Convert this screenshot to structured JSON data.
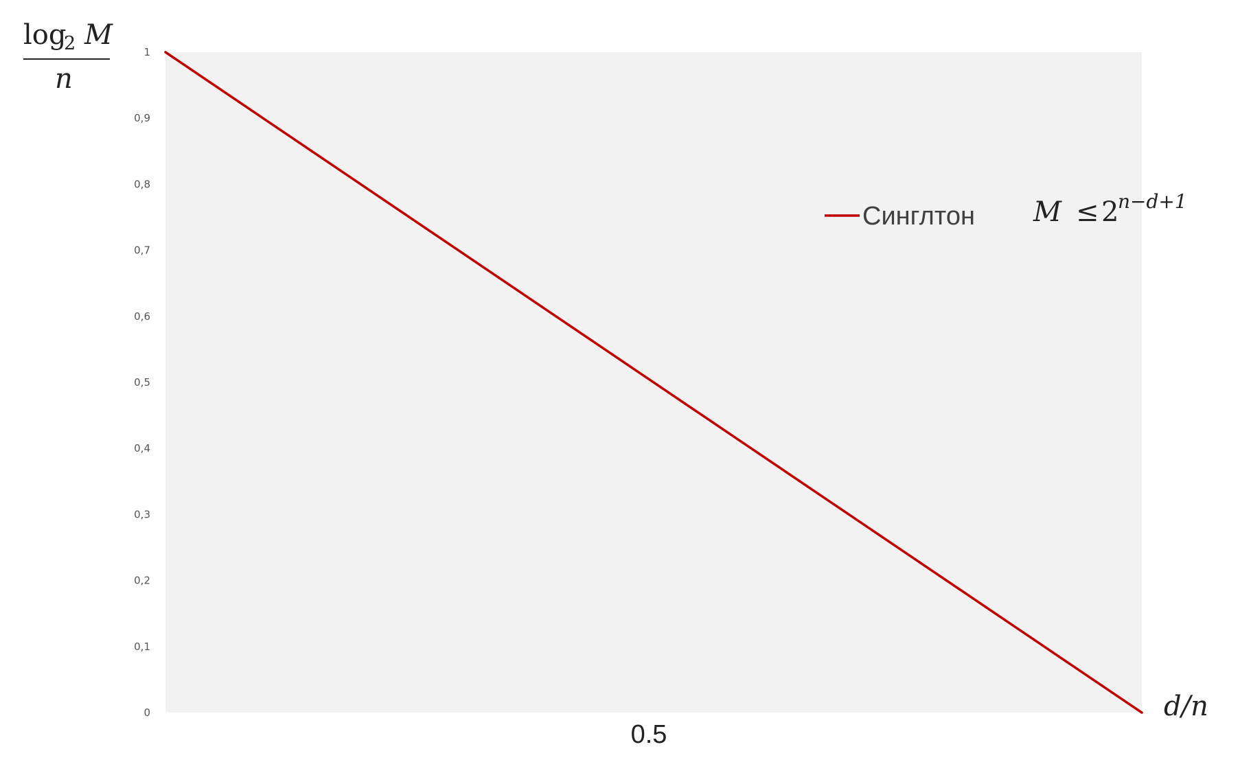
{
  "chart_data": {
    "type": "line",
    "title": "",
    "ylabel": {
      "fraction_numerator_func": "log",
      "fraction_numerator_sub": "2",
      "fraction_numerator_var": "M",
      "fraction_denominator": "n"
    },
    "xlabel": "d/n",
    "x_tick_labels": [
      "0.5"
    ],
    "y_tick_labels": [
      "0",
      "0,1",
      "0,2",
      "0,3",
      "0,4",
      "0,5",
      "0,6",
      "0,7",
      "0,8",
      "0,9",
      "1"
    ],
    "xlim": [
      0,
      1
    ],
    "ylim": [
      0,
      1
    ],
    "grid": false,
    "plot_background": "#f2f2f2",
    "legend_placement": "upper-right",
    "series": [
      {
        "name": "Синглтон",
        "color": "#c00000",
        "x": [
          0,
          1
        ],
        "y": [
          1,
          0
        ]
      }
    ],
    "annotation": {
      "lhs": "M",
      "relation": "≤",
      "base": "2",
      "exponent": "n−d+1"
    }
  }
}
